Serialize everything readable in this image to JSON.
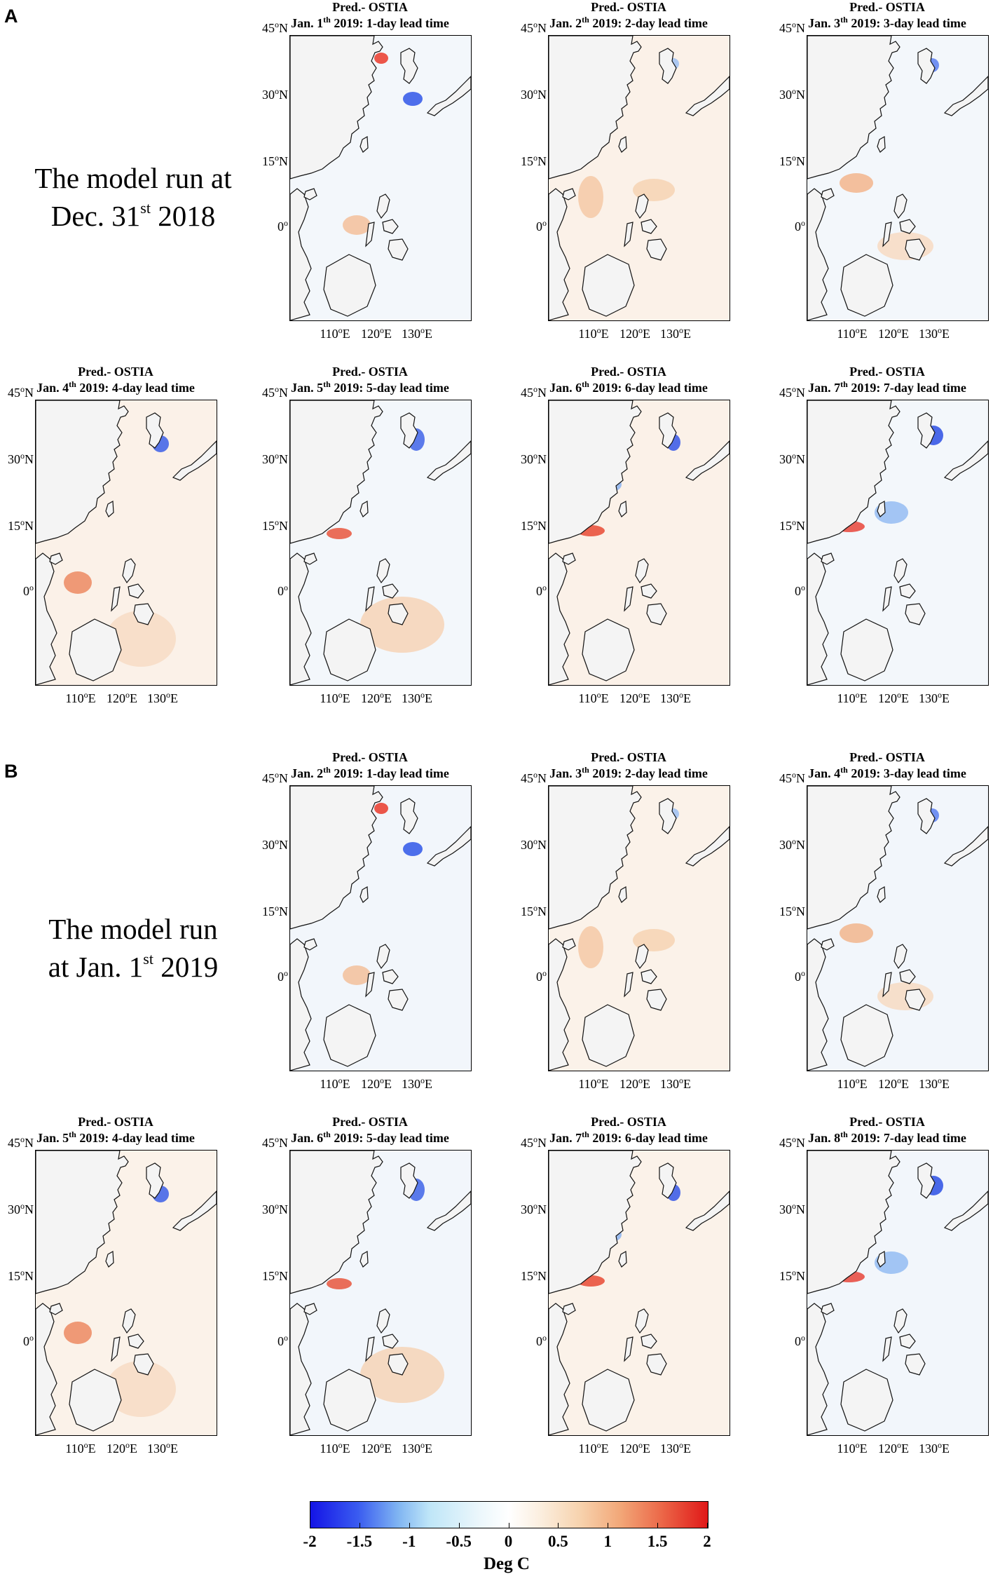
{
  "figure": {
    "panel_labels": [
      "A",
      "B"
    ],
    "run_labels": [
      {
        "line1": "The model run at",
        "line2_pre": "Dec. 31",
        "line2_sup": "st",
        "line2_post": "  2018"
      },
      {
        "line1": "The model run",
        "line2_pre": "at Jan. 1",
        "line2_sup": "st",
        "line2_post": "  2019"
      }
    ],
    "map_title_line1": "Pred.- OSTIA",
    "lat_labels": [
      {
        "deg": "45",
        "sup": "o",
        "hemi": "N"
      },
      {
        "deg": "30",
        "sup": "o",
        "hemi": "N"
      },
      {
        "deg": "15",
        "sup": "o",
        "hemi": "N"
      },
      {
        "deg": "0",
        "sup": "o",
        "hemi": ""
      }
    ],
    "lon_labels": [
      {
        "deg": "110",
        "sup": "o",
        "hemi": "E"
      },
      {
        "deg": "120",
        "sup": "o",
        "hemi": "E"
      },
      {
        "deg": "130",
        "sup": "o",
        "hemi": "E"
      }
    ],
    "colorbar": {
      "ticks": [
        "-2",
        "-1.5",
        "-1",
        "-0.5",
        "0",
        "0.5",
        "1",
        "1.5",
        "2"
      ],
      "unit": "Deg C",
      "cold_color": "#1414e6",
      "warm_color": "#e01818"
    }
  },
  "panels": [
    {
      "pre": "Jan. 1",
      "sup": "th",
      "post": " 2019:  1-day lead time",
      "lead": 1
    },
    {
      "pre": "Jan. 2",
      "sup": "th",
      "post": " 2019:  2-day lead time",
      "lead": 2
    },
    {
      "pre": "Jan. 3",
      "sup": "th",
      "post": " 2019:  3-day lead time",
      "lead": 3
    },
    {
      "pre": "Jan. 4",
      "sup": "th",
      "post": " 2019:  4-day lead time",
      "lead": 4
    },
    {
      "pre": "Jan. 5",
      "sup": "th",
      "post": " 2019:  5-day lead time",
      "lead": 5
    },
    {
      "pre": "Jan. 6",
      "sup": "th",
      "post": " 2019:  6-day lead time",
      "lead": 6
    },
    {
      "pre": "Jan. 7",
      "sup": "th",
      "post": " 2019:  7-day lead time",
      "lead": 7
    },
    {
      "pre": "Jan. 2",
      "sup": "th",
      "post": " 2019:  1-day lead time",
      "lead": 1
    },
    {
      "pre": "Jan. 3",
      "sup": "th",
      "post": " 2019:  2-day lead time",
      "lead": 2
    },
    {
      "pre": "Jan. 4",
      "sup": "th",
      "post": " 2019:  3-day lead time",
      "lead": 3
    },
    {
      "pre": "Jan. 5",
      "sup": "th",
      "post": " 2019:  4-day lead time",
      "lead": 4
    },
    {
      "pre": "Jan. 6",
      "sup": "th",
      "post": " 2019:  5-day lead time",
      "lead": 5
    },
    {
      "pre": "Jan. 7",
      "sup": "th",
      "post": " 2019:  6-day lead time",
      "lead": 6
    },
    {
      "pre": "Jan. 8",
      "sup": "th",
      "post": " 2019:  7-day lead time",
      "lead": 7
    }
  ]
}
